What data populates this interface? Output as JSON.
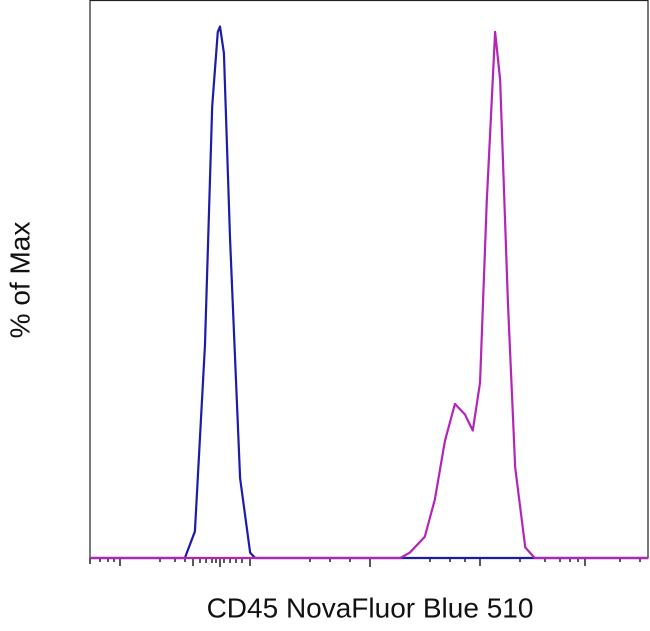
{
  "chart_data": {
    "type": "line",
    "xlabel": "CD45 NovaFluor Blue 510",
    "ylabel": "% of Max",
    "x": [
      0,
      170,
      188,
      206,
      219,
      229,
      233,
      240,
      251,
      269,
      287,
      296,
      556,
      573,
      600,
      618,
      636,
      654,
      672,
      686,
      699,
      711,
      726,
      735,
      749,
      762,
      780,
      797,
      1000
    ],
    "series": [
      {
        "color": "#1c1ca8",
        "values": [
          0,
          0,
          5,
          40,
          85,
          99,
          100,
          95,
          60,
          15,
          1,
          0,
          0,
          0,
          0,
          0,
          0,
          0,
          0,
          0,
          0,
          0,
          0,
          0,
          0,
          0,
          0,
          0,
          0
        ]
      },
      {
        "color": "#b424b8",
        "values": [
          0,
          0,
          0,
          0,
          0,
          0,
          0,
          0,
          0,
          0,
          0,
          0,
          0,
          1,
          4,
          11,
          22,
          29,
          27,
          24,
          33,
          67,
          99,
          90,
          48,
          17,
          2,
          0,
          0
        ]
      }
    ],
    "xlim": [
      0,
      1000
    ],
    "ylim": [
      0,
      105
    ]
  }
}
